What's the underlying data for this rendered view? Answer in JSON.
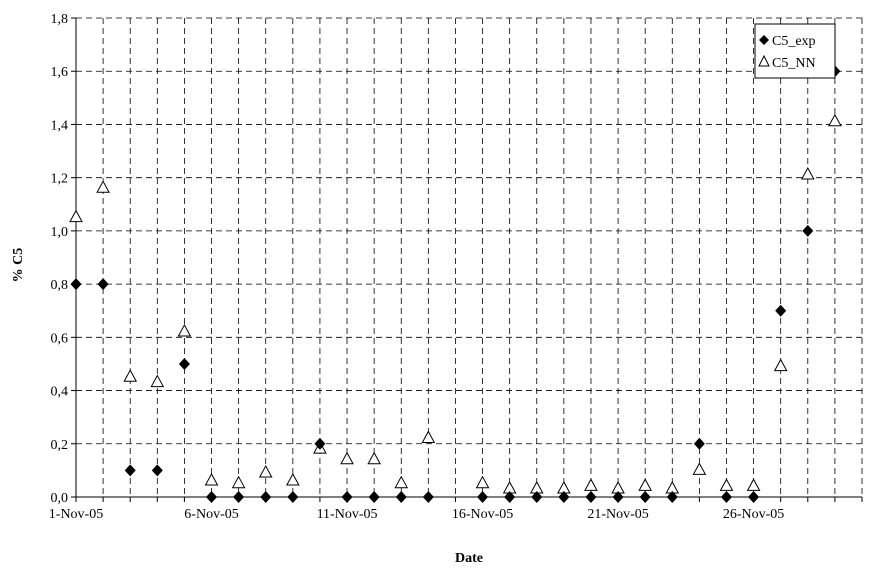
{
  "chart_data": {
    "type": "scatter",
    "xlabel": "Date",
    "ylabel": "% C5",
    "ylim": [
      0,
      1.8
    ],
    "y_ticks": [
      "0,0",
      "0,2",
      "0,4",
      "0,6",
      "0,8",
      "1,0",
      "1,2",
      "1,4",
      "1,6",
      "1,8"
    ],
    "x_range_days": [
      "1-Nov-05",
      "30-Nov-05"
    ],
    "x_ticks": [
      "1-Nov-05",
      "6-Nov-05",
      "11-Nov-05",
      "16-Nov-05",
      "21-Nov-05",
      "26-Nov-05"
    ],
    "grid": true,
    "legend_position": "top-right",
    "series": [
      {
        "name": "C5_exp",
        "marker": "filled-diamond",
        "color": "#000000",
        "points": [
          {
            "x": "1-Nov-05",
            "y": 0.8
          },
          {
            "x": "2-Nov-05",
            "y": 0.8
          },
          {
            "x": "3-Nov-05",
            "y": 0.1
          },
          {
            "x": "4-Nov-05",
            "y": 0.1
          },
          {
            "x": "5-Nov-05",
            "y": 0.5
          },
          {
            "x": "6-Nov-05",
            "y": 0.0
          },
          {
            "x": "7-Nov-05",
            "y": 0.0
          },
          {
            "x": "8-Nov-05",
            "y": 0.0
          },
          {
            "x": "9-Nov-05",
            "y": 0.0
          },
          {
            "x": "10-Nov-05",
            "y": 0.2
          },
          {
            "x": "11-Nov-05",
            "y": 0.0
          },
          {
            "x": "12-Nov-05",
            "y": 0.0
          },
          {
            "x": "13-Nov-05",
            "y": 0.0
          },
          {
            "x": "14-Nov-05",
            "y": 0.0
          },
          {
            "x": "16-Nov-05",
            "y": 0.0
          },
          {
            "x": "17-Nov-05",
            "y": 0.0
          },
          {
            "x": "18-Nov-05",
            "y": 0.0
          },
          {
            "x": "19-Nov-05",
            "y": 0.0
          },
          {
            "x": "20-Nov-05",
            "y": 0.0
          },
          {
            "x": "21-Nov-05",
            "y": 0.0
          },
          {
            "x": "22-Nov-05",
            "y": 0.0
          },
          {
            "x": "23-Nov-05",
            "y": 0.0
          },
          {
            "x": "24-Nov-05",
            "y": 0.2
          },
          {
            "x": "25-Nov-05",
            "y": 0.0
          },
          {
            "x": "26-Nov-05",
            "y": 0.0
          },
          {
            "x": "27-Nov-05",
            "y": 0.7
          },
          {
            "x": "28-Nov-05",
            "y": 1.0
          },
          {
            "x": "29-Nov-05",
            "y": 1.6
          }
        ]
      },
      {
        "name": "C5_NN",
        "marker": "open-triangle",
        "color": "#000000",
        "points": [
          {
            "x": "1-Nov-05",
            "y": 1.05
          },
          {
            "x": "2-Nov-05",
            "y": 1.16
          },
          {
            "x": "3-Nov-05",
            "y": 0.45
          },
          {
            "x": "4-Nov-05",
            "y": 0.43
          },
          {
            "x": "5-Nov-05",
            "y": 0.62
          },
          {
            "x": "6-Nov-05",
            "y": 0.06
          },
          {
            "x": "7-Nov-05",
            "y": 0.05
          },
          {
            "x": "8-Nov-05",
            "y": 0.09
          },
          {
            "x": "9-Nov-05",
            "y": 0.06
          },
          {
            "x": "10-Nov-05",
            "y": 0.18
          },
          {
            "x": "11-Nov-05",
            "y": 0.14
          },
          {
            "x": "12-Nov-05",
            "y": 0.14
          },
          {
            "x": "13-Nov-05",
            "y": 0.05
          },
          {
            "x": "14-Nov-05",
            "y": 0.22
          },
          {
            "x": "16-Nov-05",
            "y": 0.05
          },
          {
            "x": "17-Nov-05",
            "y": 0.03
          },
          {
            "x": "18-Nov-05",
            "y": 0.03
          },
          {
            "x": "19-Nov-05",
            "y": 0.03
          },
          {
            "x": "20-Nov-05",
            "y": 0.04
          },
          {
            "x": "21-Nov-05",
            "y": 0.03
          },
          {
            "x": "22-Nov-05",
            "y": 0.04
          },
          {
            "x": "23-Nov-05",
            "y": 0.03
          },
          {
            "x": "24-Nov-05",
            "y": 0.1
          },
          {
            "x": "25-Nov-05",
            "y": 0.04
          },
          {
            "x": "26-Nov-05",
            "y": 0.04
          },
          {
            "x": "27-Nov-05",
            "y": 0.49
          },
          {
            "x": "28-Nov-05",
            "y": 1.21
          },
          {
            "x": "29-Nov-05",
            "y": 1.41
          }
        ]
      }
    ]
  }
}
